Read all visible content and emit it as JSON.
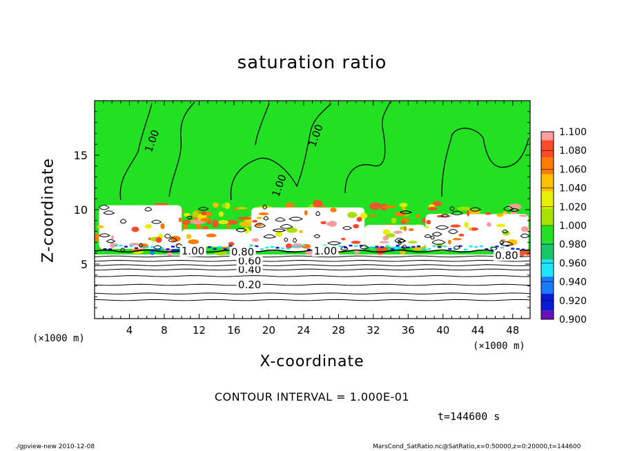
{
  "footer": {
    "left": "./gpview-new  2010-12-08",
    "right": "MarsCond_SatRatio.nc@SatRatio,x=0:50000,z=0:20000,t=144600"
  },
  "annotations": {
    "contour_interval": "CONTOUR INTERVAL = 1.000E-01",
    "time": "t=144600 s",
    "x_unit_left": "(×1000 m)",
    "x_unit_right": "(×1000 m)"
  },
  "chart_data": {
    "type": "heatmap",
    "title": "saturation ratio",
    "xlabel": "X-coordinate",
    "ylabel": "Z-coordinate",
    "xlim": [
      0,
      50
    ],
    "ylim": [
      0,
      20
    ],
    "x_ticks": [
      4,
      8,
      12,
      16,
      20,
      24,
      28,
      32,
      36,
      40,
      44,
      48
    ],
    "y_ticks": [
      5,
      10,
      15
    ],
    "colorbar": {
      "min": 0.9,
      "max": 1.1,
      "levels": [
        "1.100",
        "1.080",
        "1.060",
        "1.040",
        "1.020",
        "1.000",
        "0.980",
        "0.960",
        "0.940",
        "0.920",
        "0.900"
      ],
      "colors": [
        "#ff9c9c",
        "#ff4a2a",
        "#ff7a00",
        "#ffc000",
        "#e8f000",
        "#a8e000",
        "#22e022",
        "#18c868",
        "#1ee6ff",
        "#1a7aff",
        "#0a1ad8",
        "#6a12b8"
      ]
    },
    "contour_labels": [
      {
        "text": "0.20",
        "x": 17.8,
        "z": 3.1
      },
      {
        "text": "0.40",
        "x": 17.8,
        "z": 4.5
      },
      {
        "text": "0.60",
        "x": 17.8,
        "z": 5.3
      },
      {
        "text": "0.80",
        "x": 17.0,
        "z": 6.1
      },
      {
        "text": "1.00",
        "x": 11.3,
        "z": 6.2
      },
      {
        "text": "1.00",
        "x": 26.5,
        "z": 6.2
      },
      {
        "text": "0.80",
        "x": 47.3,
        "z": 5.8
      },
      {
        "text": "1.00",
        "x": 6.6,
        "z": 16.3
      },
      {
        "text": "1.00",
        "x": 25.4,
        "z": 16.8
      },
      {
        "text": "1.00",
        "x": 21.2,
        "z": 12.2
      }
    ],
    "stratified_levels_z": [
      1.7,
      2.3,
      3.1,
      3.9,
      4.5,
      4.9,
      5.3,
      5.7
    ],
    "white_band": [
      {
        "x": [
          0.5,
          10
        ],
        "z": [
          6.4,
          10.4
        ]
      },
      {
        "x": [
          10,
          18
        ],
        "z": [
          6.6,
          8.2
        ]
      },
      {
        "x": [
          18,
          31
        ],
        "z": [
          6.2,
          10.2
        ]
      },
      {
        "x": [
          31,
          38
        ],
        "z": [
          6.6,
          8.6
        ]
      },
      {
        "x": [
          38,
          49.8
        ],
        "z": [
          6.2,
          9.6
        ]
      }
    ]
  }
}
